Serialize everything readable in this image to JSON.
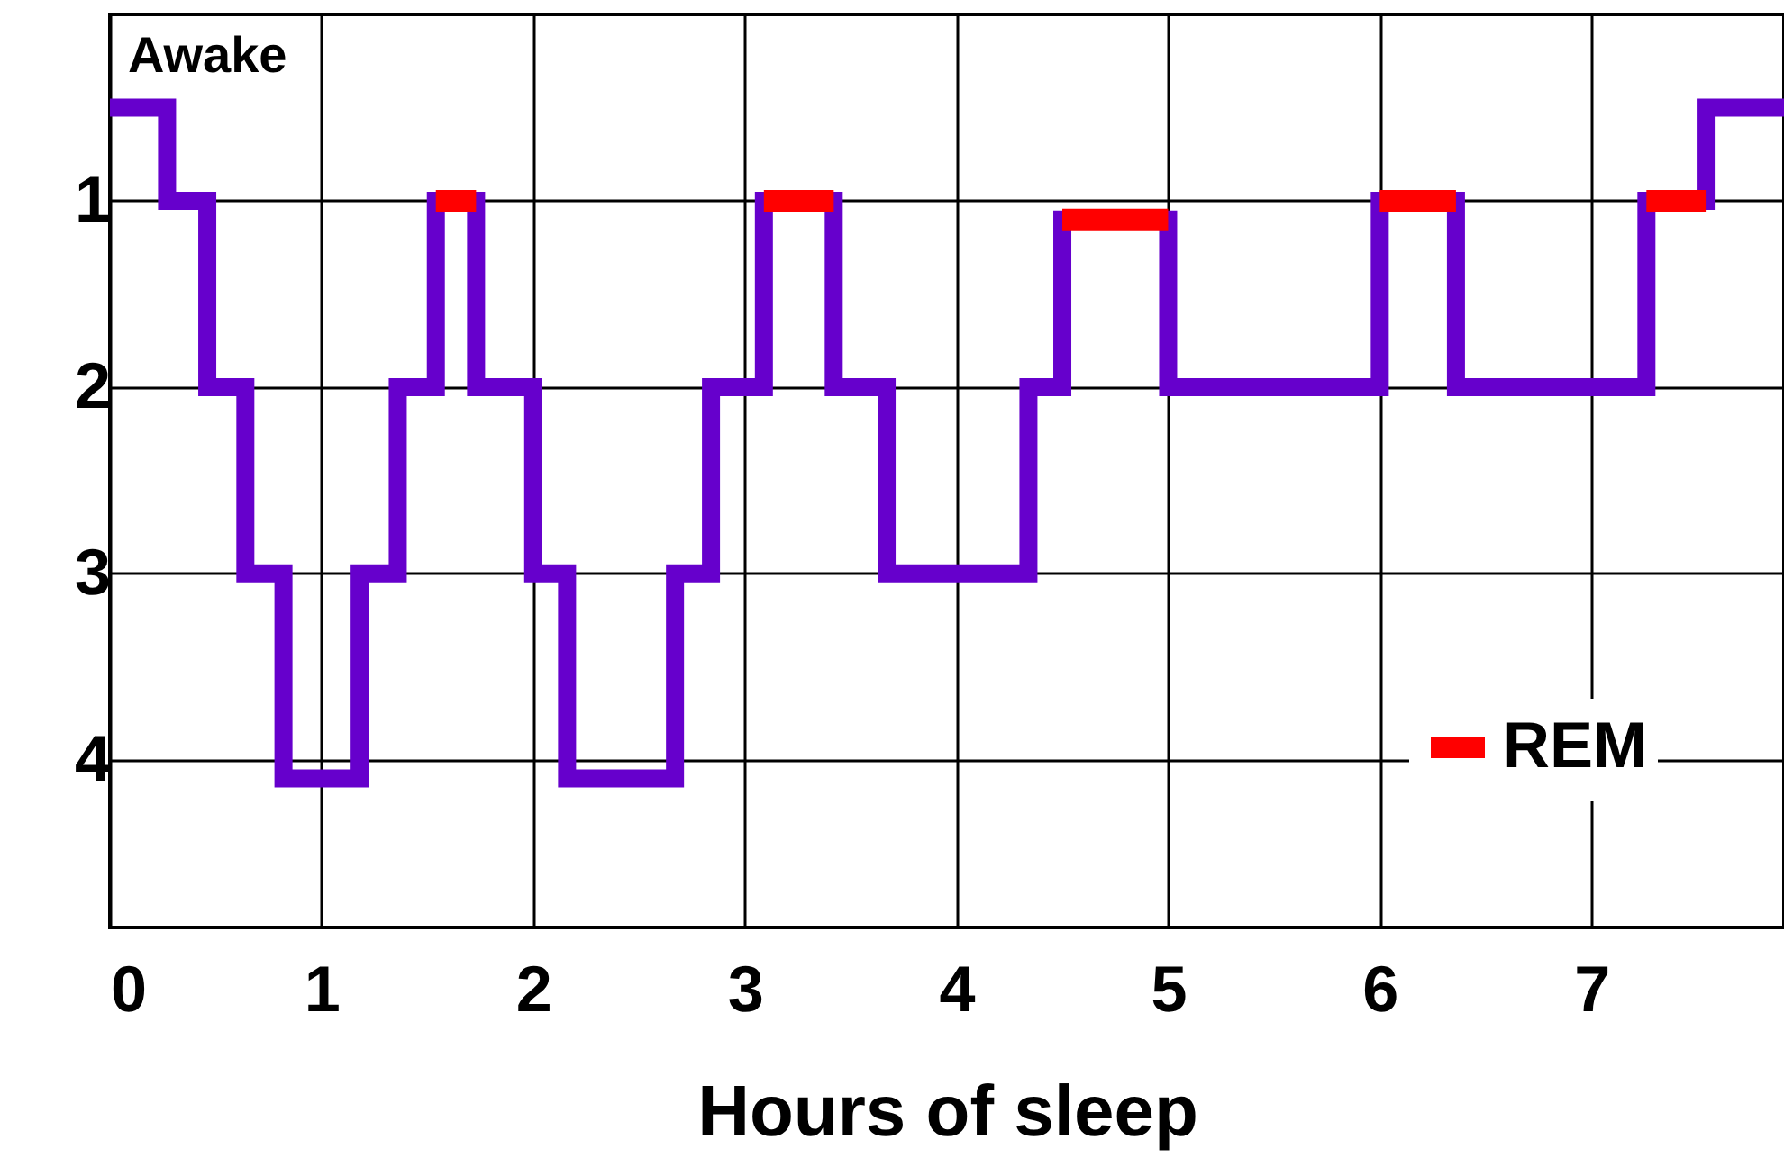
{
  "chart_data": {
    "type": "step",
    "xlabel": "Hours of sleep",
    "xlim": [
      0,
      7.91
    ],
    "xticks": [
      0,
      1,
      2,
      3,
      4,
      5,
      6,
      7
    ],
    "ylim": [
      4.9,
      0
    ],
    "yticks": [
      1,
      2,
      3,
      4
    ],
    "annotations": [
      "Awake"
    ],
    "grid": true,
    "legend": "bottom right",
    "series": [
      {
        "color": "#6600cc",
        "x": [
          0,
          0.27,
          0.46,
          0.64,
          0.82,
          1.18,
          1.36,
          1.54,
          1.73,
          2.0,
          2.16,
          2.67,
          2.84,
          3.09,
          3.42,
          3.67,
          4.34,
          4.5,
          5.0,
          6.0,
          6.36,
          7.26,
          7.54,
          7.91
        ],
        "values": [
          0.5,
          1,
          2,
          3,
          4.1,
          3,
          2,
          1,
          2,
          3,
          4.1,
          3,
          2,
          1,
          2,
          3,
          2,
          1.1,
          2,
          1,
          2,
          1,
          0.5,
          0.5
        ]
      },
      {
        "type": "line",
        "name": "REM",
        "color": "#ff0000",
        "x": [
          1.54,
          1.73,
          2.4,
          3.09,
          3.42,
          4.0,
          4.5,
          5.0,
          5.5,
          6.0,
          6.36,
          6.8,
          7.26,
          7.54
        ],
        "values": [
          1,
          1,
          null,
          1,
          1,
          null,
          1.1,
          1.1,
          null,
          1,
          1,
          null,
          1,
          1
        ]
      }
    ]
  }
}
